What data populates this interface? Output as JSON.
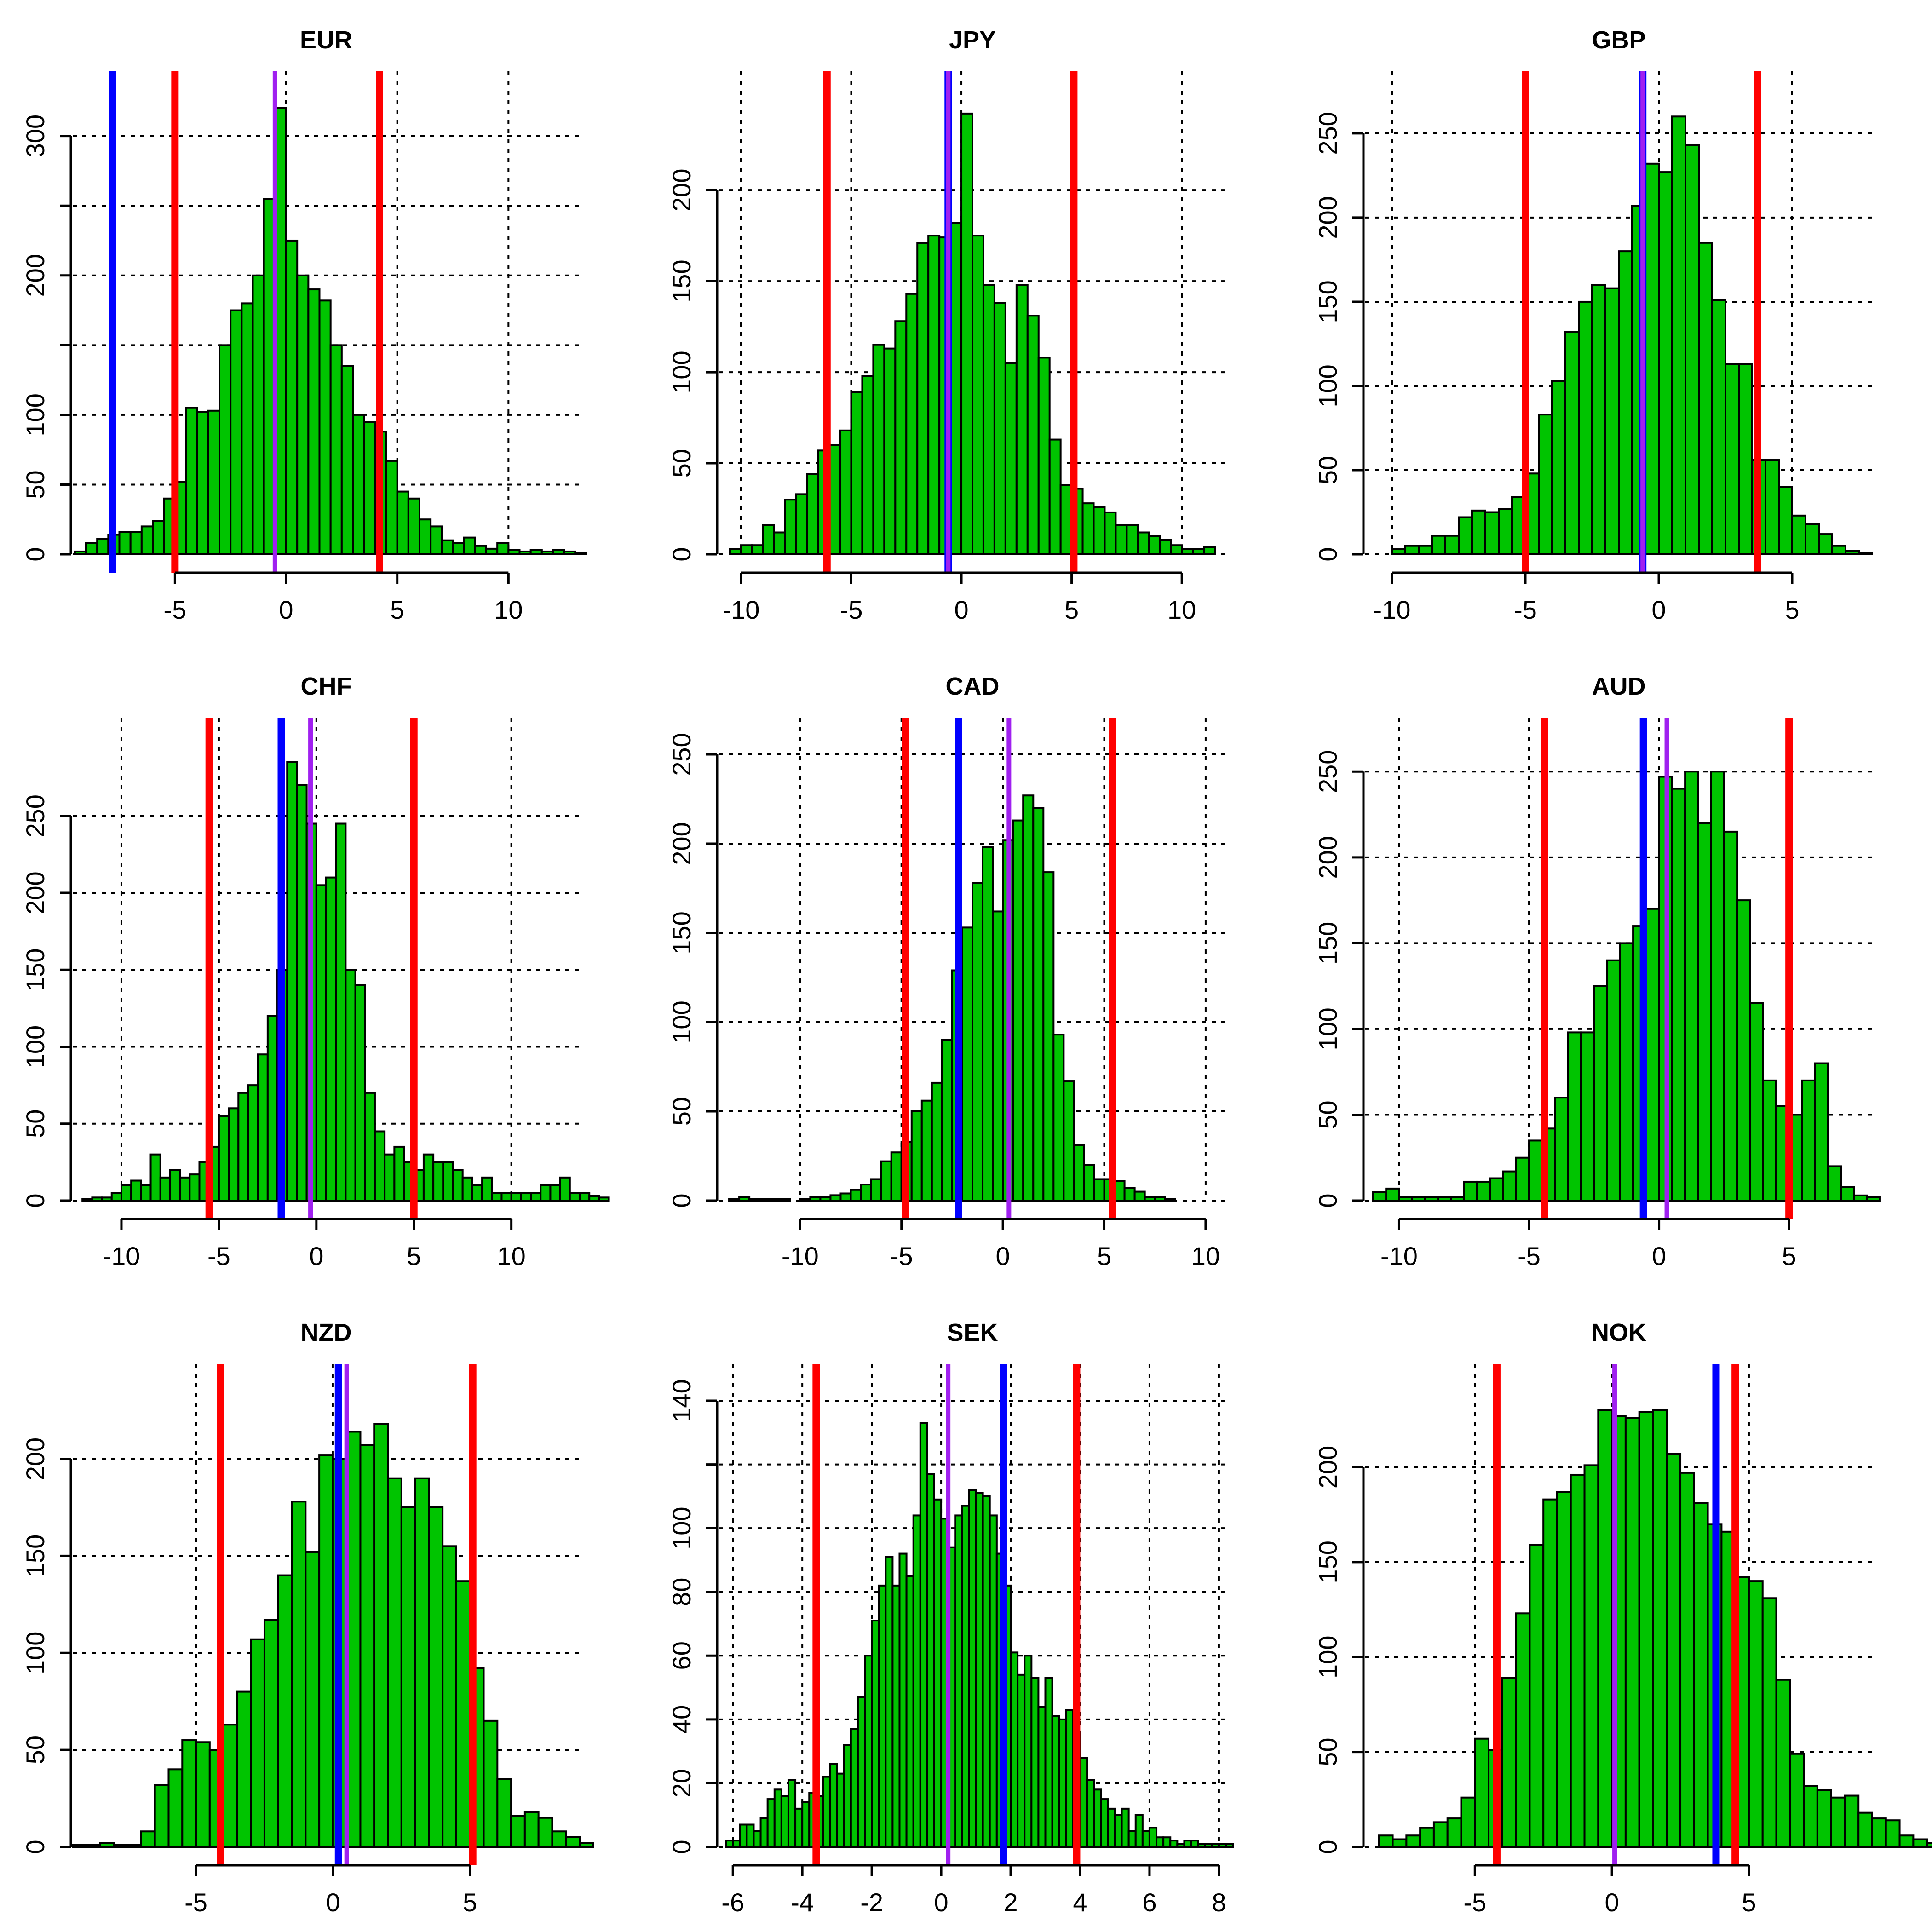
{
  "colors": {
    "bar": "#00C400",
    "quantile_line": "#FF0000",
    "observed_line": "#0000FF",
    "median_line": "#A020F0"
  },
  "chart_data": [
    {
      "type": "histogram",
      "title": "EUR",
      "xlim": [
        -9.6,
        13.2
      ],
      "ylim": [
        0,
        320
      ],
      "x_ticks": [
        -5,
        0,
        5,
        10
      ],
      "y_ticks": [
        0,
        50,
        100,
        150,
        200,
        250,
        300
      ],
      "y_tick_labels": [
        "0",
        "50",
        "100",
        "",
        "200",
        "",
        "300"
      ],
      "x_grid": [
        -5,
        0,
        5,
        10
      ],
      "y_grid": [
        0,
        50,
        100,
        150,
        200,
        250,
        300
      ],
      "grid": true,
      "bin_start": -9.5,
      "bin_width": 0.5,
      "counts": [
        2,
        8,
        11,
        14,
        16,
        16,
        20,
        24,
        40,
        52,
        105,
        102,
        103,
        150,
        175,
        180,
        200,
        255,
        320,
        225,
        200,
        190,
        182,
        150,
        135,
        100,
        95,
        88,
        67,
        45,
        40,
        25,
        20,
        10,
        8,
        12,
        6,
        4,
        8,
        3,
        2,
        3,
        2,
        3,
        2,
        1,
        0
      ],
      "lines": {
        "quantile_low": -5.0,
        "quantile_high": 4.2,
        "observed": -7.8,
        "median": -0.5
      }
    },
    {
      "type": "histogram",
      "title": "JPY",
      "xlim": [
        -11,
        12
      ],
      "ylim": [
        0,
        245
      ],
      "x_ticks": [
        -10,
        -5,
        0,
        5,
        10
      ],
      "y_ticks": [
        0,
        50,
        100,
        150,
        200
      ],
      "y_tick_labels": [
        "0",
        "50",
        "100",
        "150",
        "200"
      ],
      "x_grid": [
        -10,
        -5,
        0,
        5,
        10
      ],
      "y_grid": [
        0,
        50,
        100,
        150,
        200
      ],
      "grid": true,
      "bin_start": -10.5,
      "bin_width": 0.5,
      "counts": [
        3,
        5,
        5,
        16,
        12,
        30,
        33,
        44,
        57,
        60,
        68,
        89,
        98,
        115,
        113,
        128,
        143,
        171,
        175,
        174,
        182,
        242,
        175,
        148,
        138,
        105,
        148,
        131,
        108,
        63,
        38,
        36,
        28,
        26,
        23,
        16,
        16,
        12,
        10,
        8,
        5,
        3,
        3,
        4
      ],
      "lines": {
        "quantile_low": -6.1,
        "quantile_high": 5.1,
        "observed": -0.6,
        "median": -0.6
      }
    },
    {
      "type": "histogram",
      "title": "GBP",
      "xlim": [
        -11,
        8
      ],
      "ylim": [
        0,
        265
      ],
      "x_ticks": [
        -10,
        -5,
        0,
        5
      ],
      "y_ticks": [
        0,
        50,
        100,
        150,
        200,
        250
      ],
      "y_tick_labels": [
        "0",
        "50",
        "100",
        "150",
        "200",
        "250"
      ],
      "x_grid": [
        -10,
        -5,
        0,
        5
      ],
      "y_grid": [
        0,
        50,
        100,
        150,
        200,
        250
      ],
      "grid": true,
      "bin_start": -10,
      "bin_width": 0.5,
      "counts": [
        3,
        5,
        5,
        11,
        11,
        22,
        26,
        25,
        27,
        34,
        48,
        83,
        103,
        132,
        150,
        160,
        158,
        180,
        207,
        232,
        227,
        260,
        243,
        185,
        151,
        113,
        113,
        56,
        56,
        40,
        23,
        18,
        12,
        5,
        2,
        1
      ],
      "lines": {
        "quantile_low": -5.0,
        "quantile_high": 3.7,
        "observed": -0.6,
        "median": -0.6
      }
    },
    {
      "type": "histogram",
      "title": "CHF",
      "xlim": [
        -12.5,
        13.5
      ],
      "ylim": [
        0,
        290
      ],
      "x_ticks": [
        -10,
        -5,
        0,
        5,
        10
      ],
      "y_ticks": [
        0,
        50,
        100,
        150,
        200,
        250
      ],
      "y_tick_labels": [
        "0",
        "50",
        "100",
        "150",
        "200",
        "250"
      ],
      "x_grid": [
        -10,
        -5,
        0,
        5,
        10
      ],
      "y_grid": [
        0,
        50,
        100,
        150,
        200,
        250
      ],
      "grid": true,
      "bin_start": -12,
      "bin_width": 0.5,
      "counts": [
        1,
        2,
        2,
        5,
        10,
        13,
        10,
        30,
        15,
        20,
        15,
        17,
        25,
        35,
        55,
        60,
        70,
        75,
        95,
        120,
        150,
        285,
        270,
        245,
        205,
        210,
        245,
        150,
        140,
        70,
        45,
        30,
        35,
        25,
        20,
        30,
        25,
        25,
        20,
        15,
        10,
        15,
        5,
        5,
        5,
        5,
        5,
        10,
        10,
        15,
        5,
        5,
        3,
        2
      ],
      "lines": {
        "quantile_low": -5.5,
        "quantile_high": 5.0,
        "observed": -1.8,
        "median": -0.3
      }
    },
    {
      "type": "histogram",
      "title": "CAD",
      "xlim": [
        -14,
        11
      ],
      "ylim": [
        0,
        250
      ],
      "x_ticks": [
        -10,
        -5,
        0,
        5,
        10
      ],
      "y_ticks": [
        0,
        50,
        100,
        150,
        200,
        250
      ],
      "y_tick_labels": [
        "0",
        "50",
        "100",
        "150",
        "200",
        "250"
      ],
      "x_grid": [
        -10,
        -5,
        0,
        5,
        10
      ],
      "y_grid": [
        0,
        50,
        100,
        150,
        200,
        250
      ],
      "grid": true,
      "bin_start": -14,
      "bin_width": 0.5,
      "counts": [
        0,
        1,
        2,
        1,
        1,
        1,
        1,
        0,
        1,
        2,
        2,
        3,
        4,
        6,
        9,
        12,
        22,
        27,
        33,
        50,
        56,
        66,
        90,
        129,
        153,
        178,
        198,
        162,
        202,
        213,
        227,
        220,
        184,
        93,
        67,
        31,
        20,
        12,
        12,
        11,
        7,
        5,
        2,
        2,
        1
      ],
      "lines": {
        "quantile_low": -4.8,
        "quantile_high": 5.4,
        "observed": -2.2,
        "median": 0.3
      }
    },
    {
      "type": "histogram",
      "title": "AUD",
      "xlim": [
        -11.3,
        8.2
      ],
      "ylim": [
        0,
        260
      ],
      "x_ticks": [
        -10,
        -5,
        0,
        5
      ],
      "y_ticks": [
        0,
        50,
        100,
        150,
        200,
        250
      ],
      "y_tick_labels": [
        "0",
        "50",
        "100",
        "150",
        "200",
        "250"
      ],
      "x_grid": [
        -10,
        -5,
        0,
        5
      ],
      "y_grid": [
        0,
        50,
        100,
        150,
        200,
        250
      ],
      "grid": true,
      "bin_start": -11,
      "bin_width": 0.5,
      "counts": [
        5,
        7,
        2,
        2,
        2,
        2,
        2,
        11,
        11,
        13,
        17,
        25,
        35,
        42,
        60,
        98,
        98,
        125,
        140,
        150,
        160,
        170,
        247,
        240,
        250,
        220,
        250,
        215,
        175,
        115,
        70,
        55,
        50,
        70,
        80,
        20,
        8,
        3,
        2
      ],
      "lines": {
        "quantile_low": -4.4,
        "quantile_high": 5.0,
        "observed": -0.6,
        "median": 0.3
      }
    },
    {
      "type": "histogram",
      "title": "NZD",
      "xlim": [
        -9.5,
        9
      ],
      "ylim": [
        0,
        230
      ],
      "x_ticks": [
        -5,
        0,
        5
      ],
      "y_ticks": [
        0,
        50,
        100,
        150,
        200
      ],
      "y_tick_labels": [
        "0",
        "50",
        "100",
        "150",
        "200"
      ],
      "x_grid": [
        -5,
        0,
        5
      ],
      "y_grid": [
        0,
        50,
        100,
        150,
        200
      ],
      "grid": true,
      "bin_start": -9.5,
      "bin_width": 0.5,
      "counts": [
        1,
        1,
        2,
        1,
        1,
        8,
        32,
        40,
        55,
        54,
        50,
        63,
        80,
        107,
        117,
        140,
        178,
        152,
        202,
        200,
        214,
        207,
        218,
        190,
        175,
        190,
        175,
        155,
        137,
        92,
        65,
        35,
        16,
        18,
        15,
        8,
        5,
        2
      ],
      "lines": {
        "quantile_low": -4.1,
        "quantile_high": 5.1,
        "observed": 0.2,
        "median": 0.5
      }
    },
    {
      "type": "histogram",
      "title": "SEK",
      "xlim": [
        -6.4,
        8.2
      ],
      "ylim": [
        0,
        140
      ],
      "x_ticks": [
        -6,
        -4,
        -2,
        0,
        2,
        4,
        6,
        8
      ],
      "y_ticks": [
        0,
        20,
        40,
        60,
        80,
        100,
        120,
        140
      ],
      "y_tick_labels": [
        "0",
        "20",
        "40",
        "60",
        "80",
        "100",
        "",
        "140"
      ],
      "x_grid": [
        -6,
        -4,
        -2,
        0,
        2,
        4,
        6,
        8
      ],
      "y_grid": [
        0,
        20,
        40,
        60,
        80,
        100,
        120,
        140
      ],
      "grid": true,
      "bin_start": -6.2,
      "bin_width": 0.2,
      "counts": [
        2,
        2,
        7,
        7,
        5,
        9,
        15,
        18,
        16,
        21,
        12,
        14,
        17,
        16,
        22,
        26,
        23,
        32,
        37,
        47,
        60,
        71,
        82,
        91,
        82,
        92,
        85,
        104,
        133,
        117,
        109,
        103,
        94,
        104,
        107,
        112,
        111,
        110,
        104,
        92,
        82,
        61,
        54,
        60,
        53,
        44,
        53,
        41,
        40,
        43,
        36,
        28,
        21,
        18,
        15,
        12,
        10,
        12,
        5,
        10,
        5,
        6,
        3,
        3,
        2,
        1,
        2,
        2,
        1,
        1,
        1,
        1,
        1
      ],
      "lines": {
        "quantile_low": -3.6,
        "quantile_high": 3.9,
        "observed": 1.8,
        "median": 0.2
      }
    },
    {
      "type": "histogram",
      "title": "NOK",
      "xlim": [
        -9,
        9.5
      ],
      "ylim": [
        0,
        235
      ],
      "x_ticks": [
        -5,
        0,
        5
      ],
      "y_ticks": [
        0,
        50,
        100,
        150,
        200
      ],
      "y_tick_labels": [
        "0",
        "50",
        "100",
        "150",
        "200"
      ],
      "x_grid": [
        -5,
        0,
        5
      ],
      "y_grid": [
        0,
        50,
        100,
        150,
        200
      ],
      "grid": true,
      "bin_start": -8.5,
      "bin_width": 0.5,
      "counts": [
        6,
        4,
        6,
        10,
        13,
        15,
        26,
        57,
        51,
        89,
        123,
        159,
        183,
        187,
        196,
        201,
        230,
        227,
        226,
        229,
        230,
        207,
        197,
        181,
        170,
        166,
        142,
        140,
        131,
        88,
        49,
        32,
        30,
        26,
        27,
        18,
        15,
        14,
        6,
        4,
        2,
        1,
        1
      ],
      "lines": {
        "quantile_low": -4.2,
        "quantile_high": 4.5,
        "observed": 3.8,
        "median": 0.1
      }
    }
  ]
}
